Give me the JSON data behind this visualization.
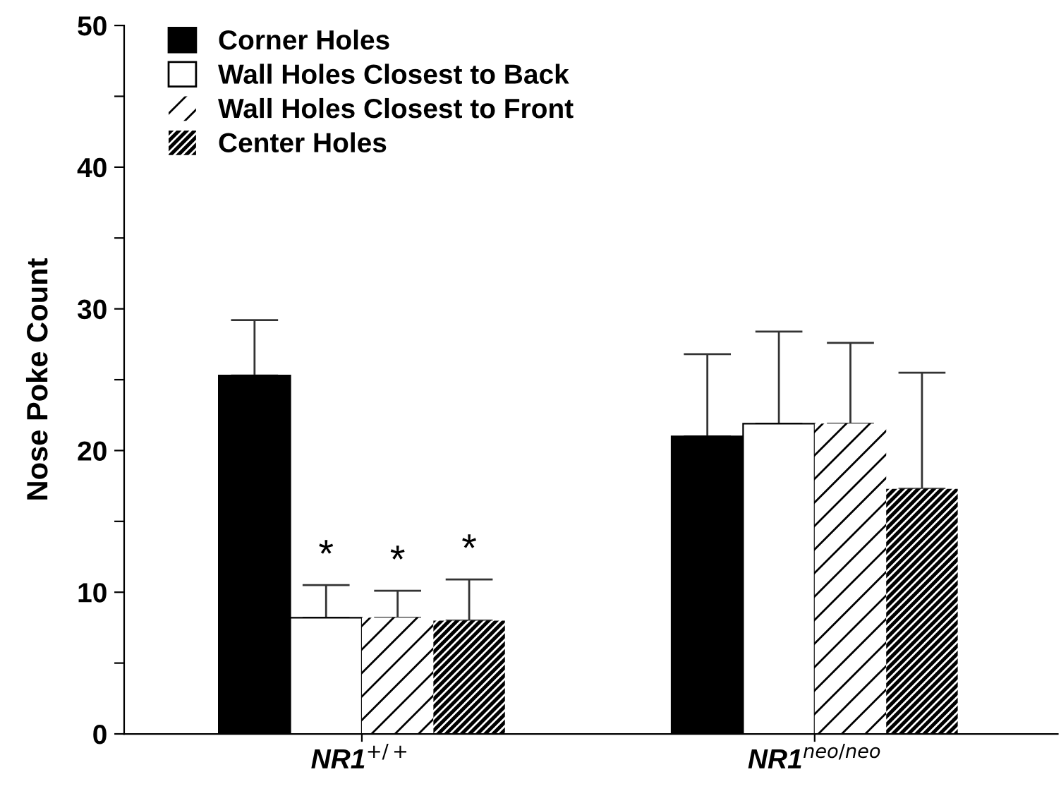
{
  "chart_data": {
    "type": "bar",
    "ylabel": "Nose Poke Count",
    "categories": [
      "NR1$^{+/+}$",
      "NR1$^{neo/neo}$"
    ],
    "series": [
      {
        "name": "Corner Holes",
        "color": "#000000",
        "values": [
          25.3,
          21.0
        ],
        "errors": [
          [
            25.3,
            29.2
          ],
          [
            21.0,
            26.8
          ]
        ]
      },
      {
        "name": "Wall Holes Closest to Back",
        "color": "#ffffff",
        "values": [
          8.2,
          21.9
        ],
        "errors": [
          [
            8.2,
            10.5
          ],
          [
            21.9,
            28.4
          ]
        ]
      },
      {
        "name": "Wall Holes Closest to Front",
        "color": "#ffffff",
        "values": [
          8.2,
          21.9
        ],
        "errors": [
          [
            8.2,
            10.1
          ],
          [
            21.9,
            27.6
          ]
        ]
      },
      {
        "name": "Center Holes",
        "color": "#000000",
        "values": [
          8.0,
          17.3
        ],
        "errors": [
          [
            8.0,
            10.9
          ],
          [
            17.3,
            25.5
          ]
        ]
      }
    ],
    "ylim": [
      0,
      50
    ],
    "yticks": [
      0,
      {
        "value": 5,
        "label": null
      },
      10,
      {
        "value": 15,
        "label": null
      },
      20,
      {
        "value": 25,
        "label": null
      },
      30,
      {
        "value": 35,
        "label": null
      },
      40,
      {
        "value": 45,
        "label": null
      },
      50
    ],
    "annotations": [
      "*",
      "*",
      "*"
    ],
    "legend": "top left",
    "grid": false
  }
}
